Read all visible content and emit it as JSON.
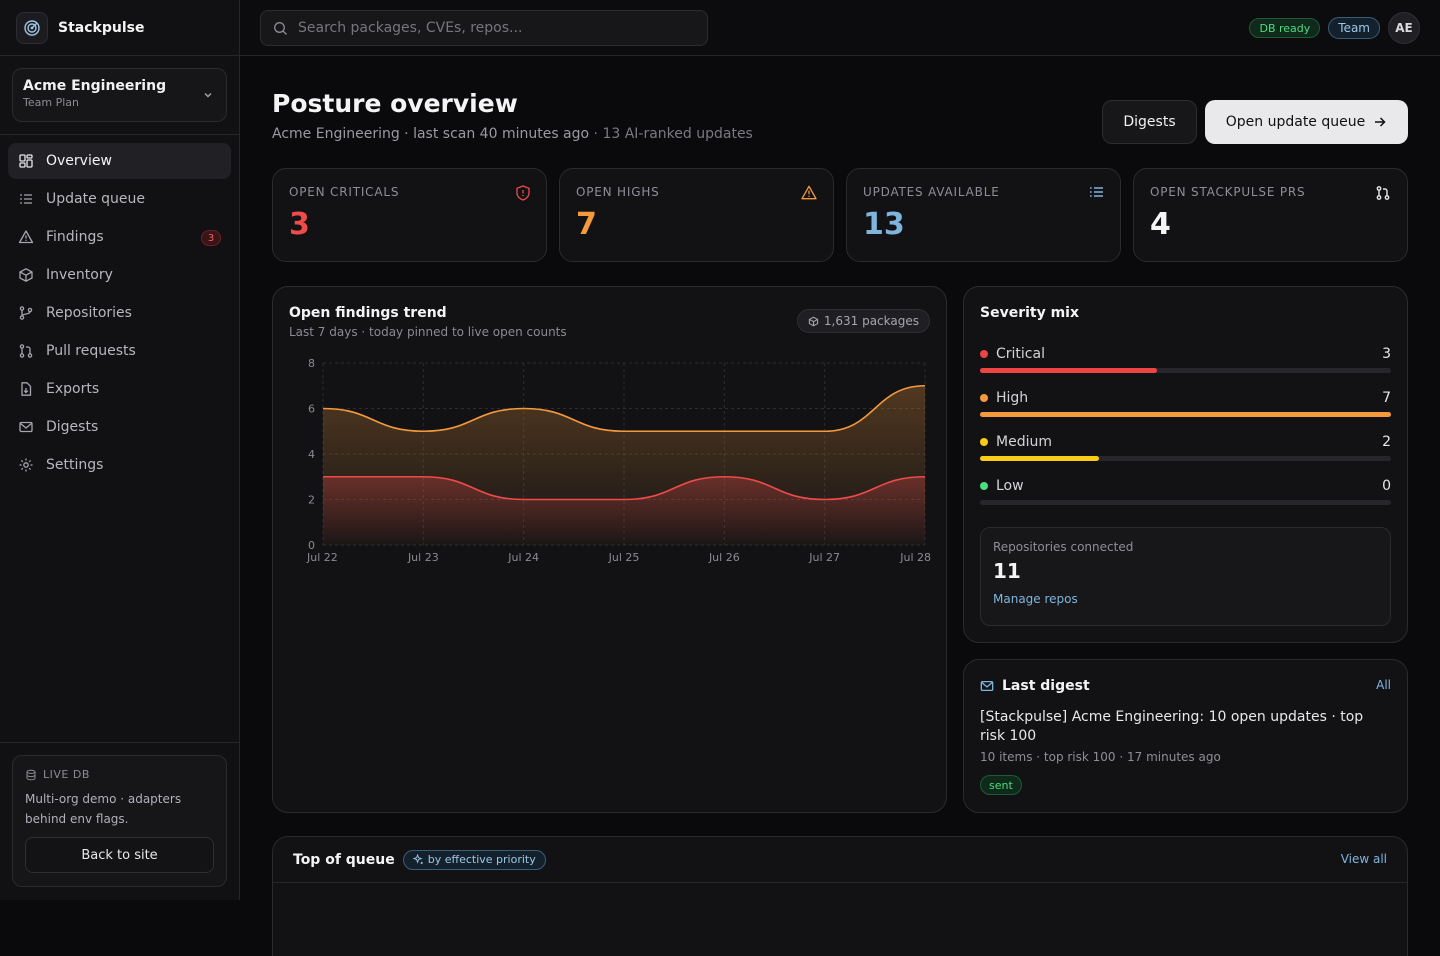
{
  "brand": {
    "name": "Stackpulse"
  },
  "org": {
    "name": "Acme Engineering",
    "plan": "Team Plan"
  },
  "nav": [
    {
      "label": "Overview",
      "icon": "grid-icon",
      "active": true
    },
    {
      "label": "Update queue",
      "icon": "list-icon"
    },
    {
      "label": "Findings",
      "icon": "warning-icon",
      "badge": "3"
    },
    {
      "label": "Inventory",
      "icon": "package-icon"
    },
    {
      "label": "Repositories",
      "icon": "git-branch-icon"
    },
    {
      "label": "Pull requests",
      "icon": "git-pull-request-icon"
    },
    {
      "label": "Exports",
      "icon": "file-export-icon"
    },
    {
      "label": "Digests",
      "icon": "mail-icon"
    },
    {
      "label": "Settings",
      "icon": "gear-icon"
    }
  ],
  "footer": {
    "tag": "LIVE DB",
    "text": "Multi-org demo · adapters behind env flags.",
    "back_label": "Back to site"
  },
  "topbar": {
    "search_placeholder": "Search packages, CVEs, repos...",
    "db_status": "DB ready",
    "team_label": "Team",
    "avatar_initials": "AE"
  },
  "page": {
    "title": "Posture overview",
    "subtitle": "Acme Engineering · last scan 40 minutes ago",
    "subtitle_extra": " · 13 AI-ranked updates",
    "digests_button": "Digests",
    "queue_button": "Open update queue"
  },
  "stats": [
    {
      "label": "OPEN CRITICALS",
      "value": "3",
      "color": "#f04b4b",
      "icon": "shield-alert-icon"
    },
    {
      "label": "OPEN HIGHS",
      "value": "7",
      "color": "#f59a3c",
      "icon": "warning-icon"
    },
    {
      "label": "UPDATES AVAILABLE",
      "value": "13",
      "color": "#7fb5dd",
      "icon": "list-icon"
    },
    {
      "label": "OPEN STACKPULSE PRS",
      "value": "4",
      "color": "#f4f4f5",
      "icon": "git-pull-request-icon"
    }
  ],
  "trend": {
    "title": "Open findings trend",
    "subtitle": "Last 7 days · today pinned to live open counts",
    "packages": "1,631 packages"
  },
  "chart_data": {
    "type": "area",
    "categories": [
      "Jul 22",
      "Jul 23",
      "Jul 24",
      "Jul 25",
      "Jul 26",
      "Jul 27",
      "Jul 28"
    ],
    "series": [
      {
        "values": [
          6,
          5,
          6,
          5,
          5,
          5,
          7
        ],
        "color": "#f59a3c"
      },
      {
        "values": [
          3,
          3,
          2,
          2,
          3,
          2,
          3
        ],
        "color": "#ef4a4a"
      }
    ],
    "ylim": [
      0,
      8
    ],
    "yticks": [
      "0",
      "2",
      "4",
      "6",
      "8"
    ],
    "grid": true
  },
  "severity": {
    "title": "Severity mix",
    "rows": [
      {
        "name": "Critical",
        "count": "3",
        "fraction": 0.43,
        "color": "#ef4444"
      },
      {
        "name": "High",
        "count": "7",
        "fraction": 1.0,
        "color": "#f59a3c"
      },
      {
        "name": "Medium",
        "count": "2",
        "fraction": 0.29,
        "color": "#facc15"
      },
      {
        "name": "Low",
        "count": "0",
        "fraction": 0,
        "color": "#4ade80"
      }
    ],
    "repos_label": "Repositories connected",
    "repos_value": "11",
    "repos_link": "Manage repos"
  },
  "digest": {
    "title": "Last digest",
    "all_label": "All",
    "subject": "[Stackpulse] Acme Engineering: 10 open updates · top risk 100",
    "meta": "10 items · top risk 100 · 17 minutes ago",
    "status": "sent"
  },
  "queue": {
    "title": "Top of queue",
    "pill": "by effective priority",
    "view_all": "View all"
  }
}
